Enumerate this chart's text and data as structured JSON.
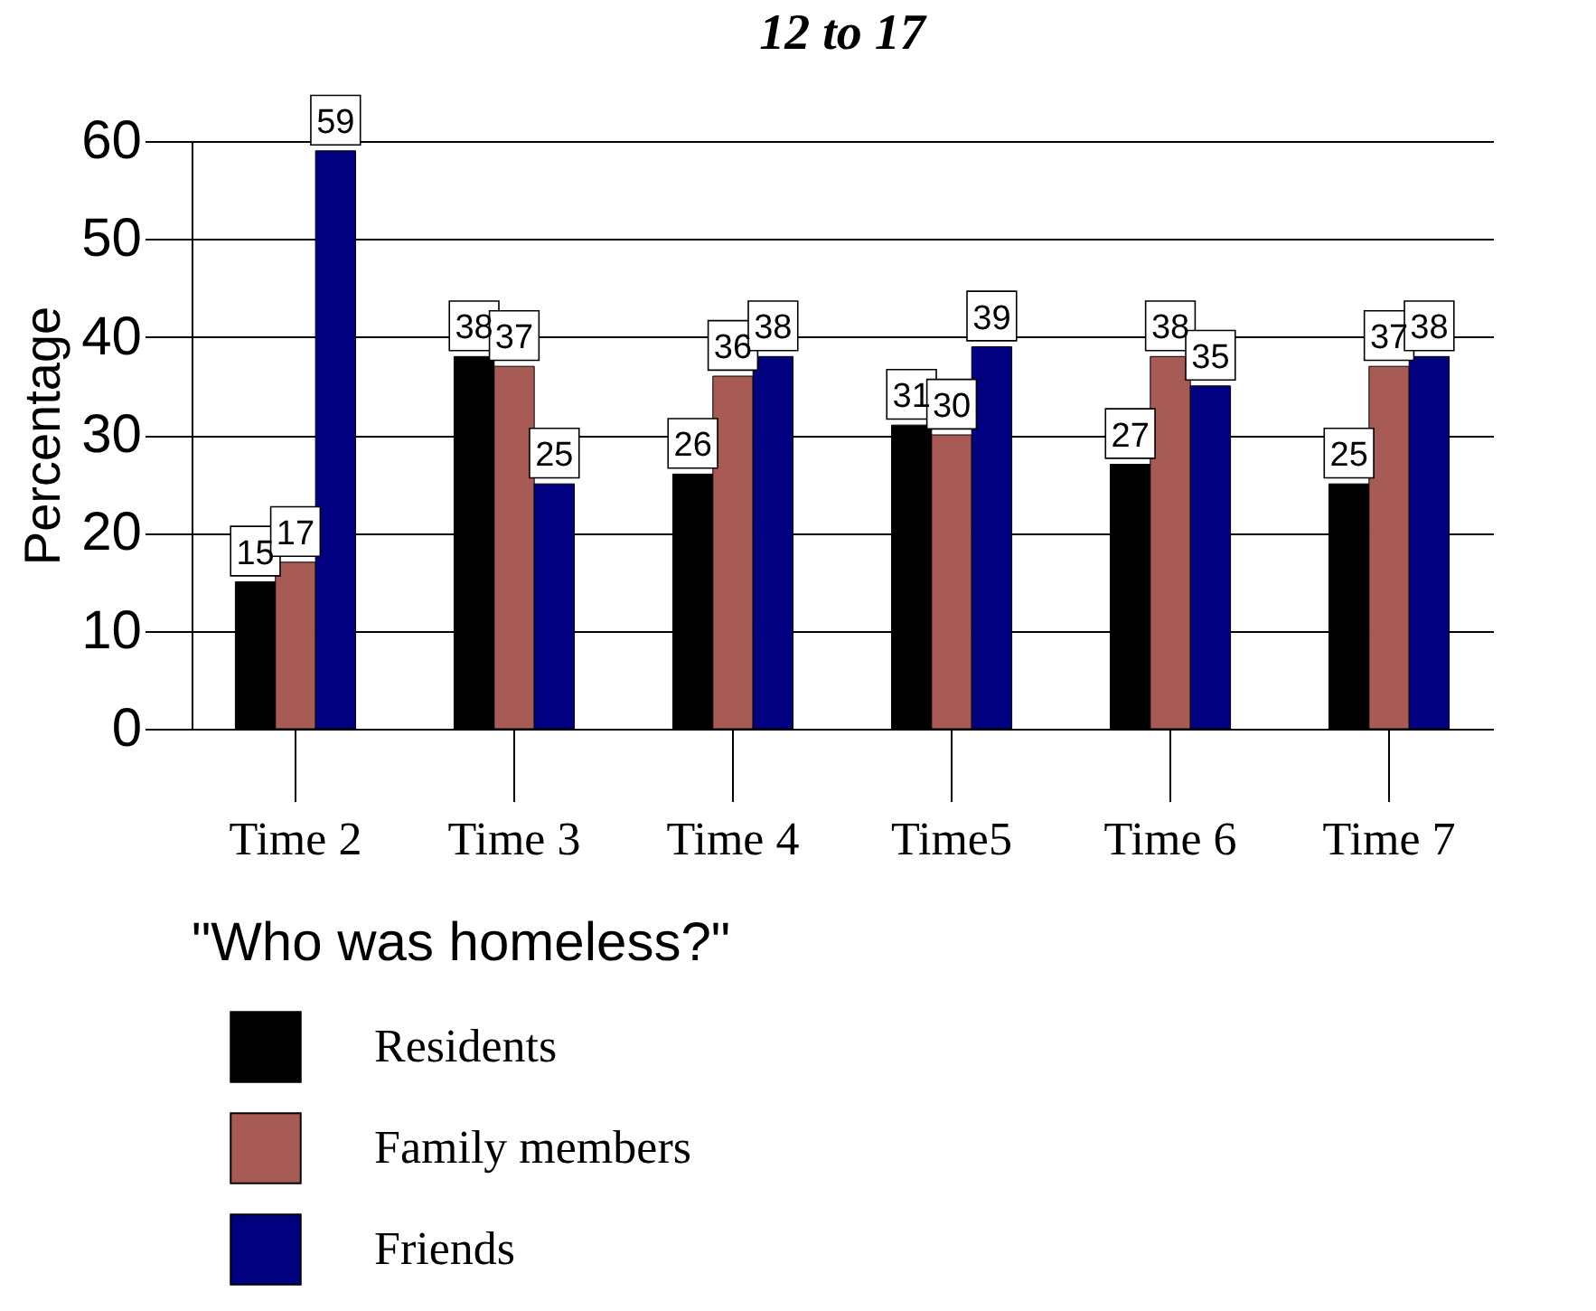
{
  "chart_data": {
    "type": "bar",
    "title": "12 to 17",
    "ylabel": "Percentage",
    "legend_title": "\"Who was homeless?\"",
    "categories": [
      "Time 2",
      "Time 3",
      "Time 4",
      "Time5",
      "Time 6",
      "Time 7"
    ],
    "series": [
      {
        "name": "Residents",
        "color": "#000000",
        "values": [
          15,
          38,
          26,
          31,
          27,
          25
        ]
      },
      {
        "name": "Family members",
        "color": "#a85a55",
        "values": [
          17,
          37,
          36,
          30,
          38,
          37
        ]
      },
      {
        "name": "Friends",
        "color": "#000080",
        "values": [
          59,
          25,
          38,
          39,
          35,
          38
        ]
      }
    ],
    "ylim": [
      0,
      60
    ],
    "yticks": [
      0,
      10,
      20,
      30,
      40,
      50,
      60
    ],
    "grid": "y",
    "legend": "bottom",
    "data_labels": true
  }
}
